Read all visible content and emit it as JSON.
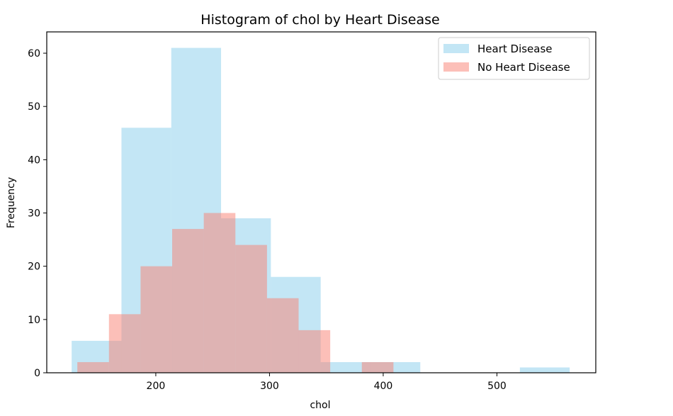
{
  "chart_data": {
    "type": "bar",
    "title": "Histogram of chol by Heart Disease",
    "xlabel": "chol",
    "ylabel": "Frequency",
    "xlim": [
      104.1,
      586.95
    ],
    "ylim": [
      0,
      64
    ],
    "xticks": [
      200,
      300,
      400,
      500
    ],
    "yticks": [
      0,
      10,
      20,
      30,
      40,
      50,
      60
    ],
    "grid": false,
    "legend_position": "top-right",
    "series": [
      {
        "name": "Heart Disease",
        "color": "#87ceeb",
        "opacity": 0.5,
        "bin_edges": [
          126.0,
          169.8,
          213.6,
          257.4,
          301.2,
          345.0,
          388.8,
          432.6,
          476.4,
          520.2,
          564.0
        ],
        "values": [
          6,
          46,
          61,
          29,
          18,
          2,
          2,
          0,
          0,
          1
        ]
      },
      {
        "name": "No Heart Disease",
        "color": "#fa8072",
        "opacity": 0.5,
        "bin_edges": [
          131.0,
          158.8,
          186.6,
          214.4,
          242.2,
          270.0,
          297.8,
          325.6,
          353.4,
          381.2,
          409.0
        ],
        "values": [
          2,
          11,
          20,
          27,
          30,
          24,
          14,
          8,
          0,
          2
        ]
      }
    ]
  }
}
